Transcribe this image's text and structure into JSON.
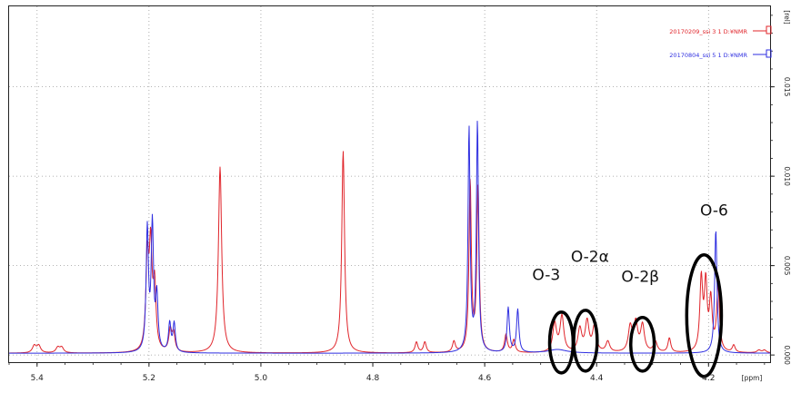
{
  "chart_data": {
    "type": "line",
    "x_unit": "[ppm]",
    "y_unit": "[rel]",
    "x_axis_reversed": true,
    "xlim": [
      5.45,
      4.09
    ],
    "ylim": [
      -0.0004,
      0.0195
    ],
    "x_ticks": [
      5.4,
      5.2,
      5.0,
      4.8,
      4.6,
      4.4,
      4.2
    ],
    "x_tick_labels": [
      "5.4",
      "5.2",
      "5.0",
      "4.8",
      "4.6",
      "4.4",
      "4.2"
    ],
    "y_ticks": [
      0.0,
      0.005,
      0.01,
      0.015
    ],
    "y_tick_labels": [
      "0.000",
      "0.005",
      "0.010",
      "0.015"
    ],
    "grid": true,
    "legend_position": "top-right",
    "baseline": 0.0001,
    "series": [
      {
        "name": "20170209_ssi 3 1 D:¥NMR",
        "color": "#e0242a",
        "peaks": [
          [
            5.405,
            0.0004,
            0.004
          ],
          [
            5.397,
            0.0004,
            0.004
          ],
          [
            5.363,
            0.0003,
            0.004
          ],
          [
            5.356,
            0.0003,
            0.004
          ],
          [
            5.203,
            0.005,
            0.003
          ],
          [
            5.197,
            0.0055,
            0.003
          ],
          [
            5.19,
            0.0035,
            0.003
          ],
          [
            5.162,
            0.0012,
            0.003
          ],
          [
            5.156,
            0.001,
            0.003
          ],
          [
            5.073,
            0.0104,
            0.0035
          ],
          [
            4.853,
            0.0113,
            0.003
          ],
          [
            4.722,
            0.0006,
            0.003
          ],
          [
            4.707,
            0.0006,
            0.003
          ],
          [
            4.655,
            0.0006,
            0.003
          ],
          [
            4.626,
            0.0095,
            0.0025
          ],
          [
            4.612,
            0.0093,
            0.0025
          ],
          [
            4.562,
            0.001,
            0.003
          ],
          [
            4.548,
            0.0007,
            0.003
          ],
          [
            4.475,
            0.0016,
            0.004
          ],
          [
            4.462,
            0.002,
            0.004
          ],
          [
            4.43,
            0.0013,
            0.004
          ],
          [
            4.417,
            0.0017,
            0.004
          ],
          [
            4.404,
            0.0014,
            0.004
          ],
          [
            4.38,
            0.0006,
            0.004
          ],
          [
            4.34,
            0.0014,
            0.004
          ],
          [
            4.33,
            0.0016,
            0.004
          ],
          [
            4.318,
            0.0015,
            0.004
          ],
          [
            4.295,
            0.0006,
            0.004
          ],
          [
            4.27,
            0.0008,
            0.003
          ],
          [
            4.213,
            0.004,
            0.003
          ],
          [
            4.205,
            0.0037,
            0.003
          ],
          [
            4.196,
            0.0028,
            0.003
          ],
          [
            4.183,
            0.0036,
            0.003
          ],
          [
            4.155,
            0.0004,
            0.003
          ],
          [
            4.11,
            0.00015,
            0.004
          ],
          [
            4.1,
            0.00015,
            0.004
          ]
        ]
      },
      {
        "name": "20170804_ssi 5 1 D:¥NMR",
        "color": "#2e2ee0",
        "peaks": [
          [
            5.203,
            0.0068,
            0.0025
          ],
          [
            5.194,
            0.007,
            0.0025
          ],
          [
            5.186,
            0.003,
            0.0025
          ],
          [
            5.163,
            0.0016,
            0.0025
          ],
          [
            5.155,
            0.0016,
            0.0025
          ],
          [
            4.628,
            0.0125,
            0.0022
          ],
          [
            4.613,
            0.0128,
            0.0022
          ],
          [
            4.558,
            0.0025,
            0.0025
          ],
          [
            4.541,
            0.0024,
            0.0025
          ],
          [
            4.187,
            0.0069,
            0.0025
          ],
          [
            4.47,
            0.0002,
            0.02
          ]
        ]
      }
    ],
    "annotations": [
      {
        "text": "O-3",
        "x": 4.49,
        "y": 0.0042
      },
      {
        "text": "O-2α",
        "x": 4.412,
        "y": 0.0052
      },
      {
        "text": "O-2β",
        "x": 4.322,
        "y": 0.0041
      },
      {
        "text": "O-6",
        "x": 4.19,
        "y": 0.0078
      }
    ],
    "highlight_ellipses": [
      {
        "cx": 4.463,
        "cy": 0.0007,
        "rx": 0.021,
        "ry": 0.0017
      },
      {
        "cx": 4.42,
        "cy": 0.0008,
        "rx": 0.021,
        "ry": 0.0017
      },
      {
        "cx": 4.318,
        "cy": 0.0006,
        "rx": 0.021,
        "ry": 0.0015
      },
      {
        "cx": 4.208,
        "cy": 0.0022,
        "rx": 0.031,
        "ry": 0.0034
      }
    ]
  }
}
